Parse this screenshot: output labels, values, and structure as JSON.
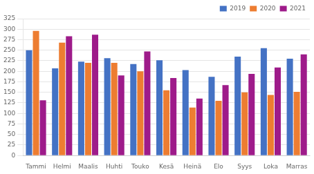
{
  "chart_data": {
    "type": "bar",
    "categories": [
      "Tammi",
      "Helmi",
      "Maalis",
      "Huhti",
      "Touko",
      "Kesä",
      "Heinä",
      "Elo",
      "Syys",
      "Loka",
      "Marras"
    ],
    "series": [
      {
        "name": "2019",
        "color": "#4472C4",
        "values": [
          250,
          207,
          223,
          231,
          217,
          226,
          203,
          187,
          235,
          255,
          230
        ]
      },
      {
        "name": "2020",
        "color": "#ED7D31",
        "values": [
          296,
          268,
          220,
          220,
          200,
          155,
          114,
          130,
          150,
          144,
          151
        ]
      },
      {
        "name": "2021",
        "color": "#9E1B8A",
        "values": [
          131,
          283,
          287,
          190,
          247,
          184,
          135,
          167,
          194,
          209,
          240
        ]
      }
    ],
    "ylim": [
      0,
      325
    ],
    "yticks": [
      0,
      25,
      50,
      75,
      100,
      125,
      150,
      175,
      200,
      225,
      250,
      275,
      300,
      325
    ],
    "grid": true,
    "legend": "upper right"
  }
}
